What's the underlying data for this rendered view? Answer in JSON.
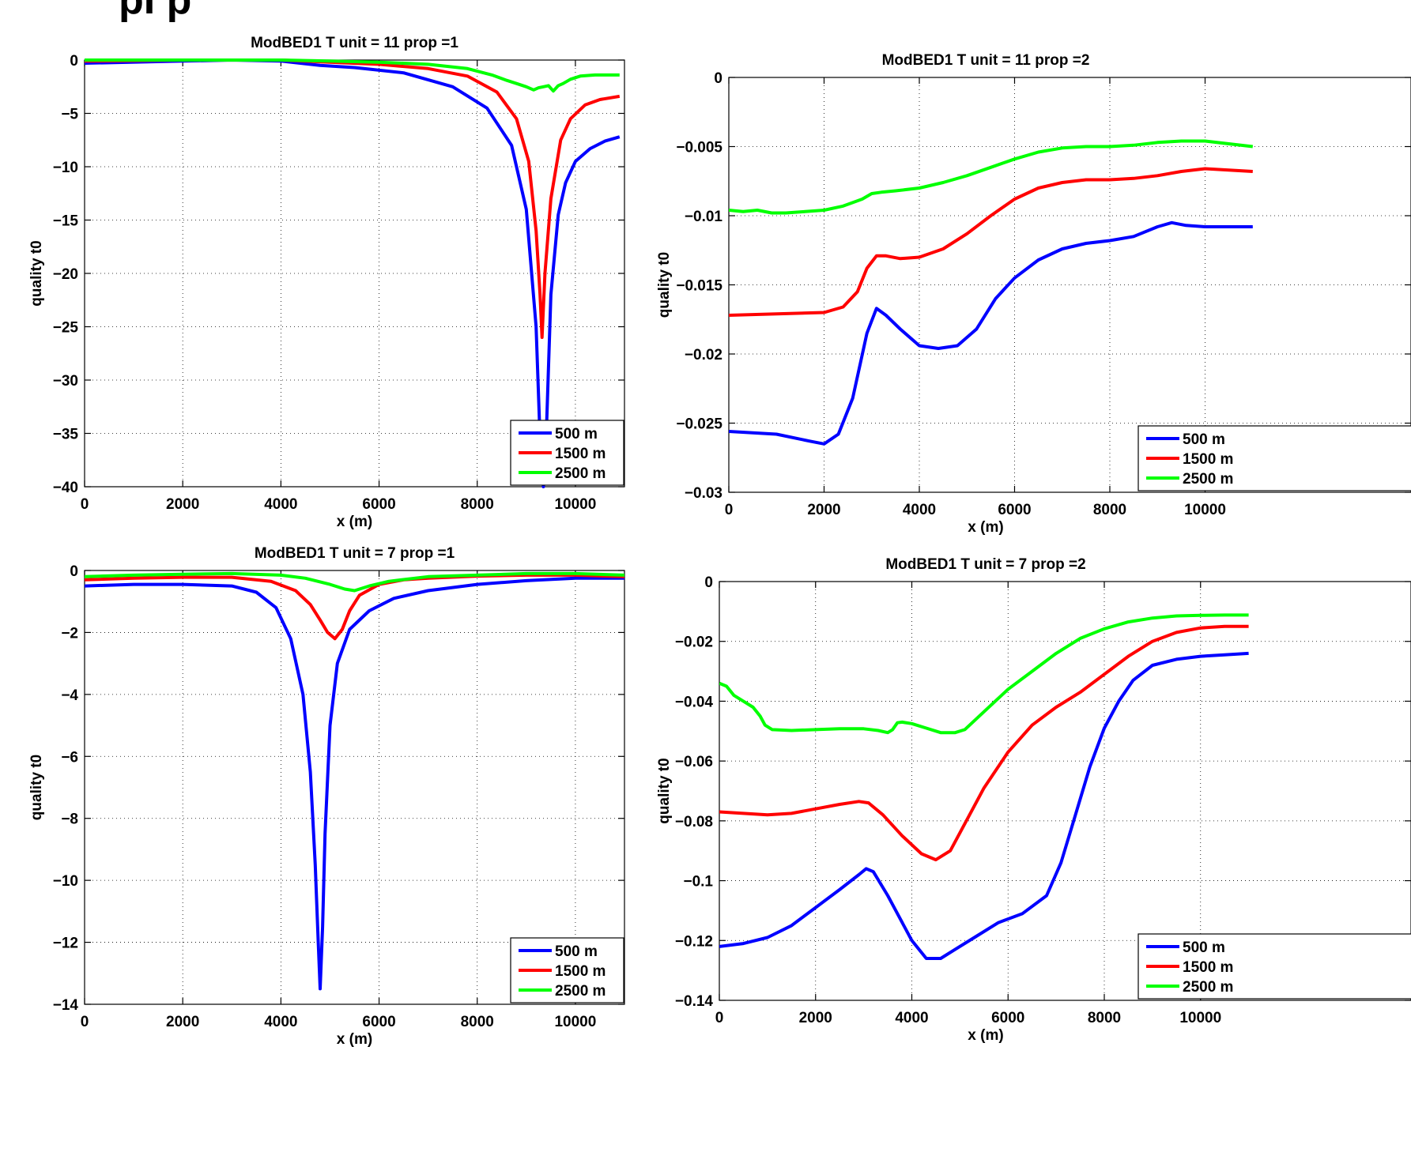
{
  "page": {
    "top_title": "pI p"
  },
  "chart_data": [
    {
      "type": "line",
      "title": "ModBED1 T unit = 11 prop =1",
      "xlabel": "x (m)",
      "ylabel": "quality t0",
      "xlim": [
        0,
        11000
      ],
      "ylim": [
        -40,
        0
      ],
      "xticks": [
        0,
        2000,
        4000,
        6000,
        8000,
        10000
      ],
      "xtick_labels": [
        "0",
        "2000",
        "4000",
        "6000",
        "8000",
        "10000"
      ],
      "yticks": [
        0,
        -5,
        -10,
        -15,
        -20,
        -25,
        -30,
        -35,
        -40
      ],
      "ytick_labels": [
        "0",
        "−5",
        "−10",
        "−15",
        "−20",
        "−25",
        "−30",
        "−35",
        "−40"
      ],
      "grid": true,
      "legend_position": "bottom-right",
      "series": [
        {
          "name": "500 m",
          "color": "#0000ff",
          "x": [
            0,
            2000,
            3000,
            4000,
            4800,
            5500,
            6500,
            7500,
            8200,
            8700,
            9000,
            9200,
            9300,
            9350,
            9400,
            9500,
            9650,
            9800,
            10000,
            10300,
            10600,
            10900
          ],
          "y": [
            -0.3,
            -0.1,
            0.0,
            -0.1,
            -0.5,
            -0.7,
            -1.2,
            -2.5,
            -4.5,
            -8,
            -14,
            -25,
            -38,
            -40,
            -36,
            -22,
            -14.5,
            -11.5,
            -9.5,
            -8.3,
            -7.6,
            -7.2
          ]
        },
        {
          "name": "1500 m",
          "color": "#ff0000",
          "x": [
            0,
            2000,
            3000,
            4000,
            5000,
            6000,
            7000,
            7800,
            8400,
            8800,
            9050,
            9200,
            9280,
            9320,
            9380,
            9500,
            9700,
            9900,
            10200,
            10500,
            10900
          ],
          "y": [
            -0.1,
            0.0,
            0.0,
            0.0,
            -0.2,
            -0.4,
            -0.8,
            -1.5,
            -3,
            -5.5,
            -9.5,
            -16,
            -22,
            -26,
            -20,
            -13,
            -7.5,
            -5.5,
            -4.2,
            -3.7,
            -3.4
          ]
        },
        {
          "name": "2500 m",
          "color": "#00ff00",
          "x": [
            0,
            2000,
            3000,
            4000,
            5000,
            6000,
            7000,
            7800,
            8300,
            8600,
            8800,
            9000,
            9150,
            9250,
            9350,
            9450,
            9550,
            9650,
            9750,
            9900,
            10100,
            10400,
            10900
          ],
          "y": [
            0.0,
            0.0,
            0.0,
            0.0,
            -0.1,
            -0.2,
            -0.4,
            -0.8,
            -1.4,
            -1.9,
            -2.2,
            -2.5,
            -2.8,
            -2.6,
            -2.5,
            -2.4,
            -2.9,
            -2.4,
            -2.2,
            -1.8,
            -1.5,
            -1.4,
            -1.4
          ]
        }
      ]
    },
    {
      "type": "line",
      "title": "ModBED1 T unit = 11 prop =2",
      "xlabel": "x (m)",
      "ylabel": "quality t0",
      "xlim": [
        0,
        11000
      ],
      "ylim": [
        -0.03,
        0
      ],
      "xticks": [
        0,
        2000,
        4000,
        6000,
        8000,
        10000
      ],
      "xtick_labels": [
        "0",
        "2000",
        "4000",
        "6000",
        "8000",
        "10000"
      ],
      "yticks": [
        0,
        -0.005,
        -0.01,
        -0.015,
        -0.02,
        -0.025,
        -0.03
      ],
      "ytick_labels": [
        "0",
        "−0.005",
        "−0.01",
        "−0.015",
        "−0.02",
        "−0.025",
        "−0.03"
      ],
      "grid": true,
      "legend_position": "bottom-right",
      "series": [
        {
          "name": "500 m",
          "color": "#0000ff",
          "x": [
            0,
            1000,
            1700,
            2000,
            2300,
            2600,
            2900,
            3100,
            3300,
            3600,
            4000,
            4400,
            4800,
            5200,
            5600,
            6000,
            6500,
            7000,
            7500,
            8000,
            8500,
            9000,
            9300,
            9600,
            10000,
            10500,
            11000
          ],
          "y": [
            -0.0256,
            -0.0258,
            -0.0263,
            -0.0265,
            -0.0258,
            -0.0232,
            -0.0185,
            -0.0167,
            -0.0172,
            -0.0182,
            -0.0194,
            -0.0196,
            -0.0194,
            -0.0182,
            -0.016,
            -0.0145,
            -0.0132,
            -0.0124,
            -0.012,
            -0.0118,
            -0.0115,
            -0.0108,
            -0.0105,
            -0.0107,
            -0.0108,
            -0.0108,
            -0.0108
          ]
        },
        {
          "name": "1500 m",
          "color": "#ff0000",
          "x": [
            0,
            1000,
            2000,
            2400,
            2700,
            2900,
            3100,
            3300,
            3600,
            4000,
            4500,
            5000,
            5500,
            6000,
            6500,
            7000,
            7500,
            8000,
            8500,
            9000,
            9500,
            10000,
            10500,
            11000
          ],
          "y": [
            -0.0172,
            -0.0171,
            -0.017,
            -0.0166,
            -0.0155,
            -0.0138,
            -0.0129,
            -0.0129,
            -0.0131,
            -0.013,
            -0.0124,
            -0.0113,
            -0.01,
            -0.0088,
            -0.008,
            -0.0076,
            -0.0074,
            -0.0074,
            -0.0073,
            -0.0071,
            -0.0068,
            -0.0066,
            -0.0067,
            -0.0068
          ]
        },
        {
          "name": "2500 m",
          "color": "#00ff00",
          "x": [
            0,
            300,
            600,
            900,
            1200,
            1600,
            2000,
            2400,
            2800,
            3000,
            3200,
            3500,
            4000,
            4500,
            5000,
            5500,
            6000,
            6500,
            7000,
            7500,
            8000,
            8500,
            9000,
            9500,
            10000,
            10500,
            11000
          ],
          "y": [
            -0.0096,
            -0.0097,
            -0.0096,
            -0.0098,
            -0.0098,
            -0.0097,
            -0.0096,
            -0.0093,
            -0.0088,
            -0.0084,
            -0.0083,
            -0.0082,
            -0.008,
            -0.0076,
            -0.0071,
            -0.0065,
            -0.0059,
            -0.0054,
            -0.0051,
            -0.005,
            -0.005,
            -0.0049,
            -0.0047,
            -0.0046,
            -0.0046,
            -0.0048,
            -0.005
          ]
        }
      ]
    },
    {
      "type": "line",
      "title": "ModBED1 T unit = 7 prop =1",
      "xlabel": "x (m)",
      "ylabel": "quality t0",
      "xlim": [
        0,
        11000
      ],
      "ylim": [
        -14,
        0
      ],
      "xticks": [
        0,
        2000,
        4000,
        6000,
        8000,
        10000
      ],
      "xtick_labels": [
        "0",
        "2000",
        "4000",
        "6000",
        "8000",
        "10000"
      ],
      "yticks": [
        0,
        -2,
        -4,
        -6,
        -8,
        -10,
        -12,
        -14
      ],
      "ytick_labels": [
        "0",
        "−2",
        "−4",
        "−6",
        "−8",
        "−10",
        "−12",
        "−14"
      ],
      "grid": true,
      "legend_position": "bottom-right",
      "series": [
        {
          "name": "500 m",
          "color": "#0000ff",
          "x": [
            0,
            1000,
            2000,
            3000,
            3500,
            3900,
            4200,
            4450,
            4600,
            4700,
            4760,
            4800,
            4850,
            4900,
            5000,
            5150,
            5400,
            5800,
            6300,
            7000,
            8000,
            9000,
            10000,
            11000
          ],
          "y": [
            -0.5,
            -0.45,
            -0.45,
            -0.5,
            -0.7,
            -1.2,
            -2.2,
            -4,
            -6.5,
            -9.5,
            -12,
            -13.5,
            -11.5,
            -8.5,
            -5,
            -3,
            -1.9,
            -1.3,
            -0.9,
            -0.65,
            -0.45,
            -0.33,
            -0.25,
            -0.25
          ]
        },
        {
          "name": "1500 m",
          "color": "#ff0000",
          "x": [
            0,
            1000,
            2000,
            3000,
            3800,
            4300,
            4600,
            4800,
            4950,
            5100,
            5250,
            5400,
            5600,
            6000,
            6500,
            7000,
            8000,
            9000,
            10000,
            11000
          ],
          "y": [
            -0.3,
            -0.25,
            -0.22,
            -0.22,
            -0.35,
            -0.65,
            -1.1,
            -1.6,
            -2.0,
            -2.2,
            -1.9,
            -1.3,
            -0.8,
            -0.45,
            -0.3,
            -0.25,
            -0.18,
            -0.15,
            -0.15,
            -0.2
          ]
        },
        {
          "name": "2500 m",
          "color": "#00ff00",
          "x": [
            0,
            1000,
            2000,
            3000,
            4000,
            4500,
            5000,
            5300,
            5500,
            5800,
            6200,
            7000,
            8000,
            9000,
            10000,
            11000
          ],
          "y": [
            -0.2,
            -0.15,
            -0.12,
            -0.1,
            -0.15,
            -0.25,
            -0.45,
            -0.6,
            -0.65,
            -0.5,
            -0.35,
            -0.2,
            -0.15,
            -0.1,
            -0.1,
            -0.15
          ]
        }
      ]
    },
    {
      "type": "line",
      "title": "ModBED1 T unit = 7 prop =2",
      "xlabel": "x (m)",
      "ylabel": "quality t0",
      "xlim": [
        0,
        11000
      ],
      "ylim": [
        -0.14,
        0
      ],
      "xticks": [
        0,
        2000,
        4000,
        6000,
        8000,
        10000
      ],
      "xtick_labels": [
        "0",
        "2000",
        "4000",
        "6000",
        "8000",
        "10000"
      ],
      "yticks": [
        0,
        -0.02,
        -0.04,
        -0.06,
        -0.08,
        -0.1,
        -0.12,
        -0.14
      ],
      "ytick_labels": [
        "0",
        "−0.02",
        "−0.04",
        "−0.06",
        "−0.08",
        "−0.1",
        "−0.12",
        "−0.14"
      ],
      "grid": true,
      "legend_position": "bottom-right",
      "series": [
        {
          "name": "500 m",
          "color": "#0000ff",
          "x": [
            0,
            500,
            1000,
            1500,
            2000,
            2500,
            2900,
            3050,
            3200,
            3500,
            4000,
            4300,
            4600,
            4900,
            5300,
            5800,
            6300,
            6800,
            7100,
            7400,
            7700,
            8000,
            8300,
            8600,
            9000,
            9500,
            10000,
            10500,
            11000
          ],
          "y": [
            -0.122,
            -0.121,
            -0.119,
            -0.115,
            -0.109,
            -0.103,
            -0.098,
            -0.096,
            -0.097,
            -0.105,
            -0.12,
            -0.126,
            -0.126,
            -0.123,
            -0.119,
            -0.114,
            -0.111,
            -0.105,
            -0.094,
            -0.078,
            -0.062,
            -0.049,
            -0.04,
            -0.033,
            -0.028,
            -0.026,
            -0.025,
            -0.0245,
            -0.024
          ]
        },
        {
          "name": "1500 m",
          "color": "#ff0000",
          "x": [
            0,
            500,
            1000,
            1500,
            2000,
            2500,
            2900,
            3100,
            3400,
            3800,
            4200,
            4500,
            4800,
            5100,
            5500,
            6000,
            6500,
            7000,
            7500,
            8000,
            8500,
            9000,
            9500,
            10000,
            10500,
            11000
          ],
          "y": [
            -0.077,
            -0.0775,
            -0.078,
            -0.0775,
            -0.076,
            -0.0745,
            -0.0735,
            -0.074,
            -0.078,
            -0.085,
            -0.091,
            -0.093,
            -0.09,
            -0.081,
            -0.069,
            -0.057,
            -0.048,
            -0.042,
            -0.037,
            -0.031,
            -0.025,
            -0.02,
            -0.017,
            -0.0155,
            -0.015,
            -0.015
          ]
        },
        {
          "name": "2500 m",
          "color": "#00ff00",
          "x": [
            0,
            150,
            300,
            500,
            700,
            850,
            950,
            1100,
            1500,
            2000,
            2500,
            3000,
            3300,
            3500,
            3600,
            3700,
            3800,
            4000,
            4300,
            4600,
            4900,
            5100,
            5400,
            6000,
            6500,
            7000,
            7500,
            8000,
            8500,
            9000,
            9500,
            10000,
            10500,
            11000
          ],
          "y": [
            -0.034,
            -0.035,
            -0.038,
            -0.04,
            -0.042,
            -0.045,
            -0.048,
            -0.0495,
            -0.0498,
            -0.0495,
            -0.0492,
            -0.0492,
            -0.0498,
            -0.0505,
            -0.0495,
            -0.0472,
            -0.047,
            -0.0475,
            -0.049,
            -0.0505,
            -0.0505,
            -0.0495,
            -0.045,
            -0.036,
            -0.03,
            -0.024,
            -0.019,
            -0.0158,
            -0.0135,
            -0.0122,
            -0.0115,
            -0.0113,
            -0.0112,
            -0.0112
          ]
        }
      ]
    }
  ]
}
